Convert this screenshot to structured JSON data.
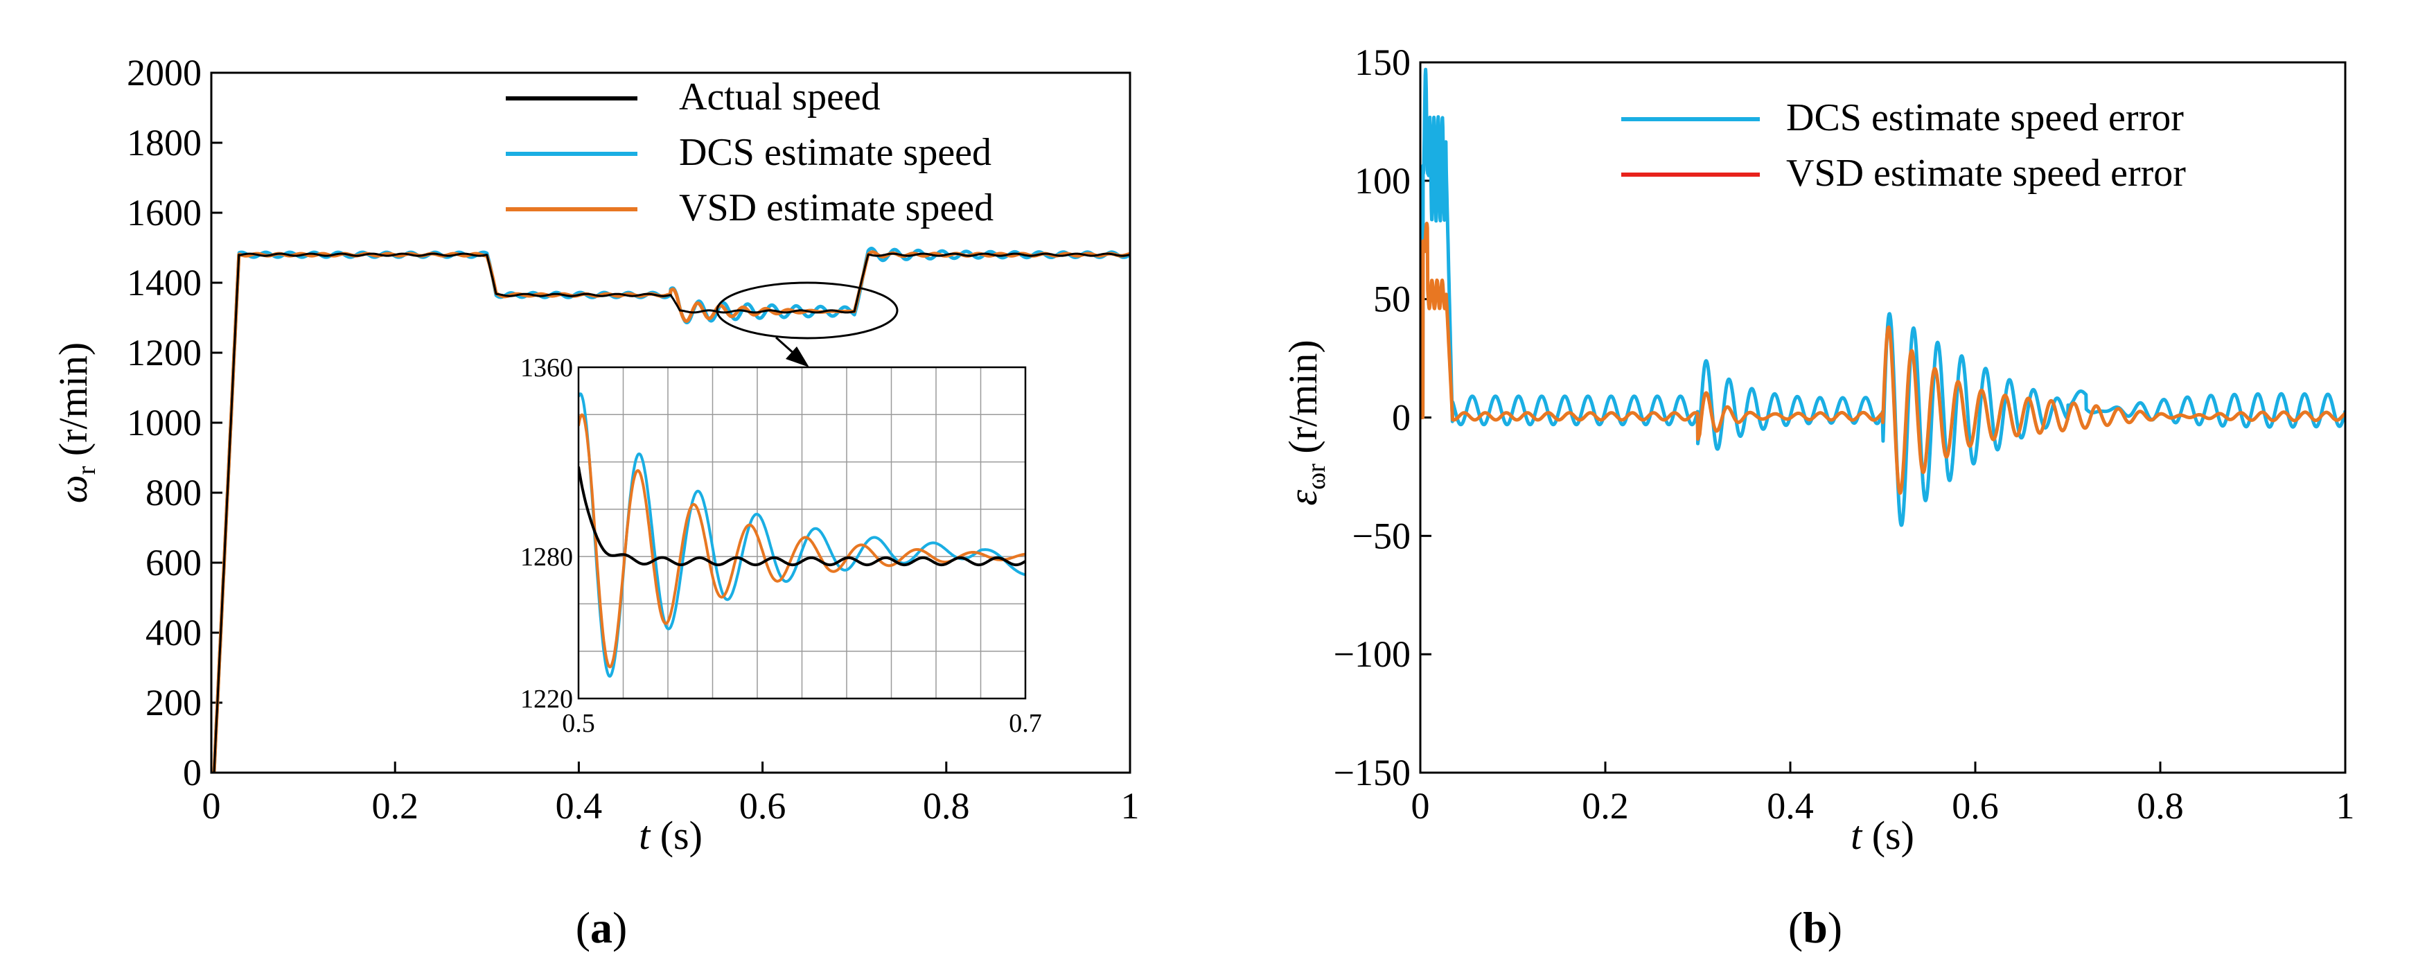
{
  "panel_labels": {
    "a": {
      "open": "(",
      "letter": "a",
      "close": ")"
    },
    "b": {
      "open": "(",
      "letter": "b",
      "close": ")"
    }
  },
  "chart_data": [
    {
      "type": "line",
      "panel": "a",
      "xlabel": {
        "sym": "t",
        "unit": " (s)"
      },
      "ylabel": {
        "sym": "ω",
        "sub": "r",
        "unit": " (r/min)"
      },
      "xlim": [
        0,
        1
      ],
      "ylim": [
        0,
        2000
      ],
      "xticks": [
        0,
        0.2,
        0.4,
        0.6,
        0.8,
        1
      ],
      "xtick_labels": [
        "0",
        "0.2",
        "0.4",
        "0.6",
        "0.8",
        "1"
      ],
      "yticks": [
        0,
        200,
        400,
        600,
        800,
        1000,
        1200,
        1400,
        1600,
        1800,
        2000
      ],
      "ytick_labels": [
        "0",
        "200",
        "400",
        "600",
        "800",
        "1000",
        "1200",
        "1400",
        "1600",
        "1800",
        "2000"
      ],
      "grid": false,
      "legend_position": "top-right",
      "series": [
        {
          "name": "Actual speed",
          "color": "#000000"
        },
        {
          "name": "DCS estimate speed",
          "color": "#1aaee3"
        },
        {
          "name": "VSD estimate speed",
          "color": "#e87722"
        }
      ],
      "profile": {
        "t": [
          0,
          0.003,
          0.03,
          0.3,
          0.31,
          0.5,
          0.51,
          0.7,
          0.715,
          1
        ],
        "speed": [
          0,
          0,
          1480,
          1480,
          1365,
          1365,
          1318,
          1318,
          1480,
          1480
        ]
      },
      "inset": {
        "xlim": [
          0.5,
          0.7
        ],
        "ylim": [
          1220,
          1360
        ],
        "xtick_labels": [
          "0.5",
          "0.7"
        ],
        "ytick_labels": [
          "1220",
          "1280",
          "1360"
        ],
        "grid": true,
        "source_region": {
          "x": [
            0.5,
            0.7
          ],
          "y": [
            1290,
            1350
          ]
        }
      }
    },
    {
      "type": "line",
      "panel": "b",
      "xlabel": {
        "sym": "t",
        "unit": " (s)"
      },
      "ylabel": {
        "sym": "ε",
        "sub": "ωr",
        "unit": " (r/min)"
      },
      "xlim": [
        0,
        1
      ],
      "ylim": [
        -150,
        150
      ],
      "xticks": [
        0,
        0.2,
        0.4,
        0.6,
        0.8,
        1
      ],
      "xtick_labels": [
        "0",
        "0.2",
        "0.4",
        "0.6",
        "0.8",
        "1"
      ],
      "yticks": [
        -150,
        -100,
        -50,
        0,
        50,
        100,
        150
      ],
      "ytick_labels": [
        "−150",
        "−100",
        "−50",
        "0",
        "50",
        "100",
        "150"
      ],
      "grid": false,
      "legend_position": "top-right",
      "series": [
        {
          "name": "DCS estimate speed error",
          "color": "#1aaee3",
          "draw_color": "#1aaee3"
        },
        {
          "name": "VSD estimate speed error",
          "color": "#e8221c",
          "draw_color": "#e87722"
        }
      ],
      "events": {
        "startup_peak": {
          "t": 0.005,
          "dcs": 128,
          "vsd": 78
        },
        "t1": {
          "t": 0.3,
          "dcs": -28,
          "vsd": -18
        },
        "t2": {
          "t": 0.5,
          "dcs": 47,
          "vsd": 43
        }
      }
    }
  ]
}
